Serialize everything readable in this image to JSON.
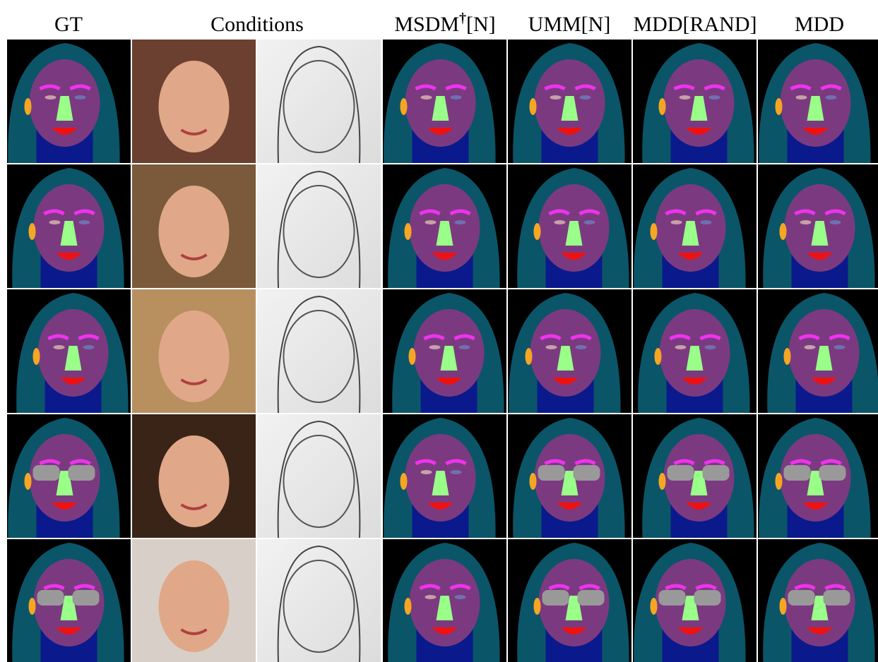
{
  "figure": {
    "columns": [
      {
        "text": "GT"
      },
      {
        "text": "Conditions"
      },
      {
        "text": "MSDM",
        "sup": "†",
        "rest": "[N]"
      },
      {
        "text": "UMM[N]"
      },
      {
        "text": "MDD[RAND]"
      },
      {
        "text": "MDD"
      }
    ]
  }
}
